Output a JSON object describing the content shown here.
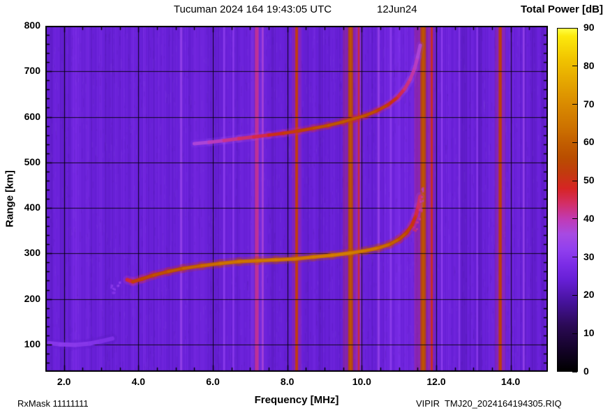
{
  "header": {
    "title": "Tucuman 2024 164 19:43:05 UTC",
    "date": "12Jun24",
    "colorbar_title": "Total Power [dB]"
  },
  "footer": {
    "rxmask": "RxMask 11111111",
    "filename": "VIPIR  TMJ20_2024164194305.RIQ"
  },
  "chart_data": {
    "type": "heatmap",
    "title": "Tucuman 2024 164 19:43:05 UTC  12Jun24",
    "xlabel": "Frequency [MHz]",
    "ylabel": "Range [km]",
    "xlim": [
      1.5,
      15.0
    ],
    "ylim": [
      40,
      800
    ],
    "grid": true,
    "x_ticks": [
      2.0,
      4.0,
      6.0,
      8.0,
      10.0,
      12.0,
      14.0
    ],
    "x_tick_labels": [
      "2.0",
      "4.0",
      "6.0",
      "8.0",
      "10.0",
      "12.0",
      "14.0"
    ],
    "x_minor_step": 0.5,
    "y_ticks": [
      100,
      200,
      300,
      400,
      500,
      600,
      700,
      800
    ],
    "y_tick_labels": [
      "100",
      "200",
      "300",
      "400",
      "500",
      "600",
      "700",
      "800"
    ],
    "y_minor_step": 20,
    "noise_floor_db": 24.3,
    "colorbar": {
      "label": "Total Power [dB]",
      "min": 0,
      "max": 90,
      "ticks": [
        0,
        10,
        20,
        30,
        40,
        50,
        60,
        70,
        80,
        90
      ],
      "stops": [
        [
          0,
          "#000000"
        ],
        [
          6,
          "#15032b"
        ],
        [
          12,
          "#2b0a55"
        ],
        [
          18,
          "#45129a"
        ],
        [
          24,
          "#671fd6"
        ],
        [
          28,
          "#7b2ce6"
        ],
        [
          32,
          "#9140ee"
        ],
        [
          36,
          "#a74ae2"
        ],
        [
          40,
          "#c13ab4"
        ],
        [
          44,
          "#d32e66"
        ],
        [
          48,
          "#d62424"
        ],
        [
          52,
          "#c23a0e"
        ],
        [
          56,
          "#b94d00"
        ],
        [
          60,
          "#c25e00"
        ],
        [
          64,
          "#cd7200"
        ],
        [
          70,
          "#d98a00"
        ],
        [
          76,
          "#e5a600"
        ],
        [
          82,
          "#f1c400"
        ],
        [
          88,
          "#fce90c"
        ],
        [
          90,
          "#ffff45"
        ]
      ]
    },
    "rfi_lines": [
      {
        "freq": 5.15,
        "width": 0.06,
        "db": 33
      },
      {
        "freq": 6.3,
        "width": 0.05,
        "db": 32
      },
      {
        "freq": 6.55,
        "width": 0.05,
        "db": 31
      },
      {
        "freq": 7.18,
        "width": 0.1,
        "db": 42
      },
      {
        "freq": 7.34,
        "width": 0.05,
        "db": 37
      },
      {
        "freq": 8.25,
        "width": 0.08,
        "db": 51
      },
      {
        "freq": 9.7,
        "width": 0.13,
        "db": 55
      },
      {
        "freq": 9.92,
        "width": 0.05,
        "db": 46
      },
      {
        "freq": 10.45,
        "width": 0.06,
        "db": 33
      },
      {
        "freq": 10.78,
        "width": 0.05,
        "db": 32
      },
      {
        "freq": 11.65,
        "width": 0.15,
        "db": 55
      },
      {
        "freq": 11.88,
        "width": 0.06,
        "db": 48
      },
      {
        "freq": 12.15,
        "width": 0.05,
        "db": 32
      },
      {
        "freq": 12.62,
        "width": 0.05,
        "db": 31
      },
      {
        "freq": 13.1,
        "width": 0.05,
        "db": 31
      },
      {
        "freq": 13.72,
        "width": 0.09,
        "db": 52
      },
      {
        "freq": 14.35,
        "width": 0.05,
        "db": 33
      }
    ],
    "traces": [
      {
        "name": "f-layer-first-hop",
        "style": "line",
        "width": 5.5,
        "points": [
          [
            3.7,
            242,
            44
          ],
          [
            3.85,
            238,
            50
          ],
          [
            4.1,
            244,
            52
          ],
          [
            4.4,
            252,
            53
          ],
          [
            4.8,
            260,
            55
          ],
          [
            5.2,
            267,
            57
          ],
          [
            5.7,
            273,
            59
          ],
          [
            6.2,
            278,
            61
          ],
          [
            6.7,
            282,
            62
          ],
          [
            7.2,
            284,
            62
          ],
          [
            7.7,
            286,
            63
          ],
          [
            8.2,
            288,
            63
          ],
          [
            8.7,
            292,
            63
          ],
          [
            9.2,
            296,
            64
          ],
          [
            9.7,
            301,
            64
          ],
          [
            10.1,
            306,
            63
          ],
          [
            10.45,
            312,
            61
          ],
          [
            10.75,
            320,
            59
          ],
          [
            11.0,
            331,
            56
          ],
          [
            11.2,
            345,
            53
          ],
          [
            11.35,
            362,
            50
          ],
          [
            11.45,
            382,
            47
          ],
          [
            11.52,
            403,
            45
          ],
          [
            11.57,
            425,
            43
          ]
        ]
      },
      {
        "name": "f-layer-x-mode-tail",
        "style": "dots",
        "width": 3,
        "points": [
          [
            11.45,
            355,
            45
          ],
          [
            11.52,
            372,
            44
          ],
          [
            11.58,
            395,
            43
          ],
          [
            11.62,
            418,
            42
          ],
          [
            11.65,
            438,
            41
          ]
        ]
      },
      {
        "name": "f-layer-second-hop",
        "style": "line",
        "width": 5,
        "points": [
          [
            5.5,
            541,
            36
          ],
          [
            5.9,
            544,
            38
          ],
          [
            6.3,
            548,
            41
          ],
          [
            6.7,
            552,
            43
          ],
          [
            7.1,
            556,
            45
          ],
          [
            7.5,
            560,
            47
          ],
          [
            7.9,
            564,
            49
          ],
          [
            8.3,
            569,
            51
          ],
          [
            8.7,
            575,
            53
          ],
          [
            9.1,
            581,
            55
          ],
          [
            9.5,
            589,
            56
          ],
          [
            9.8,
            596,
            56
          ],
          [
            10.1,
            603,
            55
          ],
          [
            10.4,
            613,
            53
          ],
          [
            10.7,
            626,
            50
          ],
          [
            10.95,
            642,
            47
          ],
          [
            11.15,
            661,
            44
          ],
          [
            11.3,
            682,
            42
          ],
          [
            11.42,
            706,
            40
          ],
          [
            11.5,
            731,
            38
          ],
          [
            11.57,
            757,
            36
          ]
        ]
      },
      {
        "name": "low-range-faint-trace",
        "style": "line",
        "width": 6,
        "points": [
          [
            1.6,
            103,
            30
          ],
          [
            1.9,
            100,
            31
          ],
          [
            2.3,
            99,
            31
          ],
          [
            2.7,
            102,
            30
          ],
          [
            3.0,
            107,
            29
          ],
          [
            3.3,
            113,
            28
          ]
        ]
      },
      {
        "name": "leading-edge-scatter",
        "style": "dots",
        "width": 3,
        "points": [
          [
            3.3,
            225,
            33
          ],
          [
            3.45,
            232,
            34
          ],
          [
            3.35,
            218,
            32
          ]
        ]
      }
    ]
  }
}
